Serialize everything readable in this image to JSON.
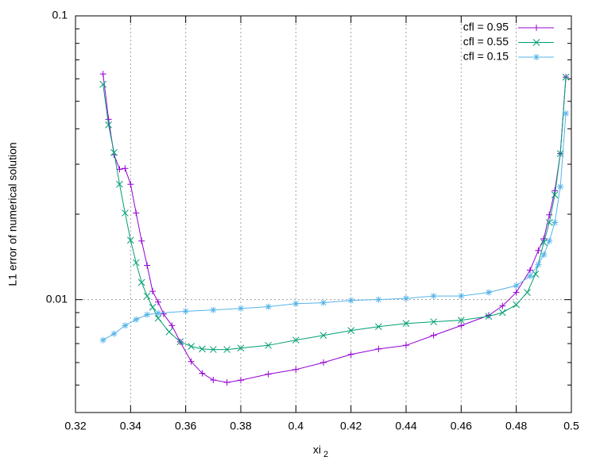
{
  "chart_data": {
    "type": "line",
    "xlabel": {
      "text": "xi",
      "subscript": "2"
    },
    "ylabel": "L1 error of numerical solution",
    "xlim": [
      0.32,
      0.5
    ],
    "xticks": [
      0.32,
      0.34,
      0.36,
      0.38,
      0.4,
      0.42,
      0.44,
      0.46,
      0.48,
      0.5
    ],
    "ylim": [
      0.004,
      0.1
    ],
    "yticks": [
      0.01,
      0.1
    ],
    "yminorticks": [
      0.005,
      0.006,
      0.007,
      0.008,
      0.009,
      0.02,
      0.03,
      0.04,
      0.05,
      0.06,
      0.07,
      0.08,
      0.09
    ],
    "ylog": true,
    "grid": true,
    "legend": "top-right",
    "series": [
      {
        "name": "cfl = 0.95",
        "color": "#9400d3",
        "marker": "plus",
        "x": [
          0.33,
          0.332,
          0.334,
          0.336,
          0.338,
          0.34,
          0.342,
          0.344,
          0.346,
          0.348,
          0.35,
          0.352,
          0.355,
          0.358,
          0.362,
          0.366,
          0.37,
          0.375,
          0.38,
          0.39,
          0.4,
          0.41,
          0.42,
          0.43,
          0.44,
          0.45,
          0.46,
          0.47,
          0.475,
          0.48,
          0.485,
          0.488,
          0.49,
          0.492,
          0.494,
          0.496,
          0.498
        ],
        "values": [
          0.0624,
          0.0432,
          0.0324,
          0.0288,
          0.029,
          0.0255,
          0.0202,
          0.0161,
          0.0132,
          0.0107,
          0.0098,
          0.0089,
          0.0081,
          0.0071,
          0.00605,
          0.0055,
          0.00521,
          0.00511,
          0.0052,
          0.00546,
          0.00567,
          0.006,
          0.00641,
          0.0067,
          0.0069,
          0.00748,
          0.0081,
          0.0088,
          0.0095,
          0.0106,
          0.0127,
          0.0149,
          0.0164,
          0.0199,
          0.0242,
          0.0327,
          0.0608
        ]
      },
      {
        "name": "cfl = 0.55",
        "color": "#009e73",
        "marker": "cross",
        "x": [
          0.33,
          0.332,
          0.334,
          0.336,
          0.338,
          0.34,
          0.342,
          0.344,
          0.346,
          0.348,
          0.35,
          0.354,
          0.358,
          0.362,
          0.366,
          0.37,
          0.375,
          0.38,
          0.39,
          0.4,
          0.41,
          0.42,
          0.43,
          0.44,
          0.45,
          0.46,
          0.47,
          0.475,
          0.48,
          0.484,
          0.487,
          0.49,
          0.492,
          0.494,
          0.496,
          0.498
        ],
        "values": [
          0.0574,
          0.0413,
          0.033,
          0.0255,
          0.0202,
          0.0162,
          0.0135,
          0.0115,
          0.0103,
          0.0094,
          0.0086,
          0.0077,
          0.0071,
          0.00684,
          0.0067,
          0.00667,
          0.00667,
          0.00675,
          0.0069,
          0.0072,
          0.00748,
          0.00778,
          0.00803,
          0.00824,
          0.00835,
          0.00846,
          0.00873,
          0.009,
          0.0096,
          0.0106,
          0.0123,
          0.0159,
          0.0187,
          0.0234,
          0.0327,
          0.0608
        ]
      },
      {
        "name": "cfl = 0.15",
        "color": "#56b4e9",
        "marker": "star",
        "x": [
          0.33,
          0.334,
          0.338,
          0.342,
          0.346,
          0.35,
          0.36,
          0.37,
          0.38,
          0.39,
          0.4,
          0.41,
          0.42,
          0.43,
          0.44,
          0.45,
          0.46,
          0.47,
          0.48,
          0.485,
          0.488,
          0.49,
          0.492,
          0.494,
          0.496,
          0.498
        ],
        "values": [
          0.0072,
          0.00758,
          0.0081,
          0.00851,
          0.00885,
          0.00896,
          0.0091,
          0.00919,
          0.00931,
          0.00944,
          0.00968,
          0.00975,
          0.00994,
          0.01,
          0.0101,
          0.0103,
          0.0103,
          0.0106,
          0.0112,
          0.0121,
          0.0133,
          0.0144,
          0.0161,
          0.0187,
          0.025,
          0.0453
        ]
      }
    ]
  }
}
